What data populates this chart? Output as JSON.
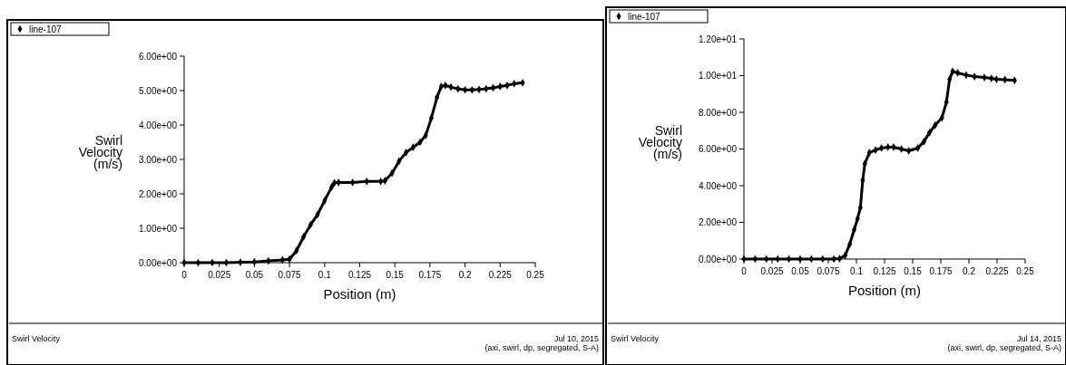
{
  "chart_data": [
    {
      "type": "line",
      "xlabel": "Position (m)",
      "ylabel": "Swirl\nVelocity\n(m/s)",
      "marker": "diamond",
      "legend": "top left",
      "xlim": [
        0,
        0.25
      ],
      "xticks": [
        0,
        0.025,
        0.05,
        0.075,
        0.1,
        0.125,
        0.15,
        0.175,
        0.2,
        0.225,
        0.25
      ],
      "ylim": [
        0,
        6
      ],
      "yticks": [
        {
          "value": 0,
          "label": "0.00e+00"
        },
        {
          "value": 1,
          "label": "1.00e+00"
        },
        {
          "value": 2,
          "label": "2.00e+00"
        },
        {
          "value": 3,
          "label": "3.00e+00"
        },
        {
          "value": 4,
          "label": "4.00e+00"
        },
        {
          "value": 5,
          "label": "5.00e+00"
        },
        {
          "value": 6,
          "label": "6.00e+00"
        }
      ],
      "series": [
        {
          "name": "line-107",
          "color": "#000000",
          "x": [
            0,
            0.01,
            0.02,
            0.03,
            0.04,
            0.05,
            0.06,
            0.07,
            0.075,
            0.08,
            0.085,
            0.09,
            0.095,
            0.1,
            0.105,
            0.107,
            0.11,
            0.12,
            0.13,
            0.14,
            0.143,
            0.148,
            0.153,
            0.158,
            0.163,
            0.168,
            0.172,
            0.176,
            0.18,
            0.183,
            0.186,
            0.19,
            0.195,
            0.2,
            0.205,
            0.21,
            0.215,
            0.22,
            0.225,
            0.23,
            0.235,
            0.241
          ],
          "values": [
            0,
            0,
            0,
            0,
            0.01,
            0.02,
            0.05,
            0.08,
            0.1,
            0.35,
            0.75,
            1.1,
            1.4,
            1.8,
            2.2,
            2.32,
            2.33,
            2.33,
            2.36,
            2.36,
            2.38,
            2.6,
            2.95,
            3.2,
            3.35,
            3.5,
            3.7,
            4.2,
            4.8,
            5.12,
            5.15,
            5.1,
            5.05,
            5.02,
            5.02,
            5.03,
            5.05,
            5.08,
            5.12,
            5.15,
            5.2,
            5.23
          ]
        }
      ],
      "annotations": [
        "Swirl Velocity",
        "Jul 10, 2015",
        "(axi, swirl, dp, segregated, S-A)"
      ]
    },
    {
      "type": "line",
      "xlabel": "Position (m)",
      "ylabel": "Swirl\nVelocity\n(m/s)",
      "marker": "diamond",
      "legend": "top left",
      "xlim": [
        0,
        0.25
      ],
      "xticks": [
        0,
        0.025,
        0.05,
        0.075,
        0.1,
        0.125,
        0.15,
        0.175,
        0.2,
        0.225,
        0.25
      ],
      "ylim": [
        0,
        12
      ],
      "yticks": [
        {
          "value": 0,
          "label": "0.00e+00"
        },
        {
          "value": 2,
          "label": "2.00e+00"
        },
        {
          "value": 4,
          "label": "4.00e+00"
        },
        {
          "value": 6,
          "label": "6.00e+00"
        },
        {
          "value": 8,
          "label": "8.00e+00"
        },
        {
          "value": 10,
          "label": "1.00e+01"
        },
        {
          "value": 12,
          "label": "1.20e+01"
        }
      ],
      "series": [
        {
          "name": "line-107",
          "color": "#000000",
          "x": [
            0,
            0.01,
            0.02,
            0.03,
            0.04,
            0.05,
            0.06,
            0.07,
            0.08,
            0.085,
            0.09,
            0.094,
            0.098,
            0.101,
            0.1035,
            0.1056,
            0.1075,
            0.1115,
            0.117,
            0.1223,
            0.128,
            0.133,
            0.14,
            0.1465,
            0.1546,
            0.16,
            0.165,
            0.17,
            0.176,
            0.18,
            0.1828,
            0.1855,
            0.19,
            0.1976,
            0.205,
            0.2137,
            0.22,
            0.2245,
            0.232,
            0.2406
          ],
          "values": [
            0,
            0,
            0,
            0,
            0,
            0,
            0,
            0,
            0,
            0.02,
            0.2,
            0.8,
            1.6,
            2.2,
            2.8,
            4.3,
            5.2,
            5.8,
            5.95,
            6.05,
            6.1,
            6.1,
            6.0,
            5.9,
            6.05,
            6.4,
            6.9,
            7.3,
            7.7,
            8.55,
            9.8,
            10.23,
            10.15,
            10.03,
            9.95,
            9.9,
            9.85,
            9.8,
            9.78,
            9.74
          ]
        }
      ],
      "annotations": [
        "Swirl Velocity",
        "Jul 14, 2015",
        "(axi, swirl, dp, segregated, S-A)"
      ]
    }
  ]
}
